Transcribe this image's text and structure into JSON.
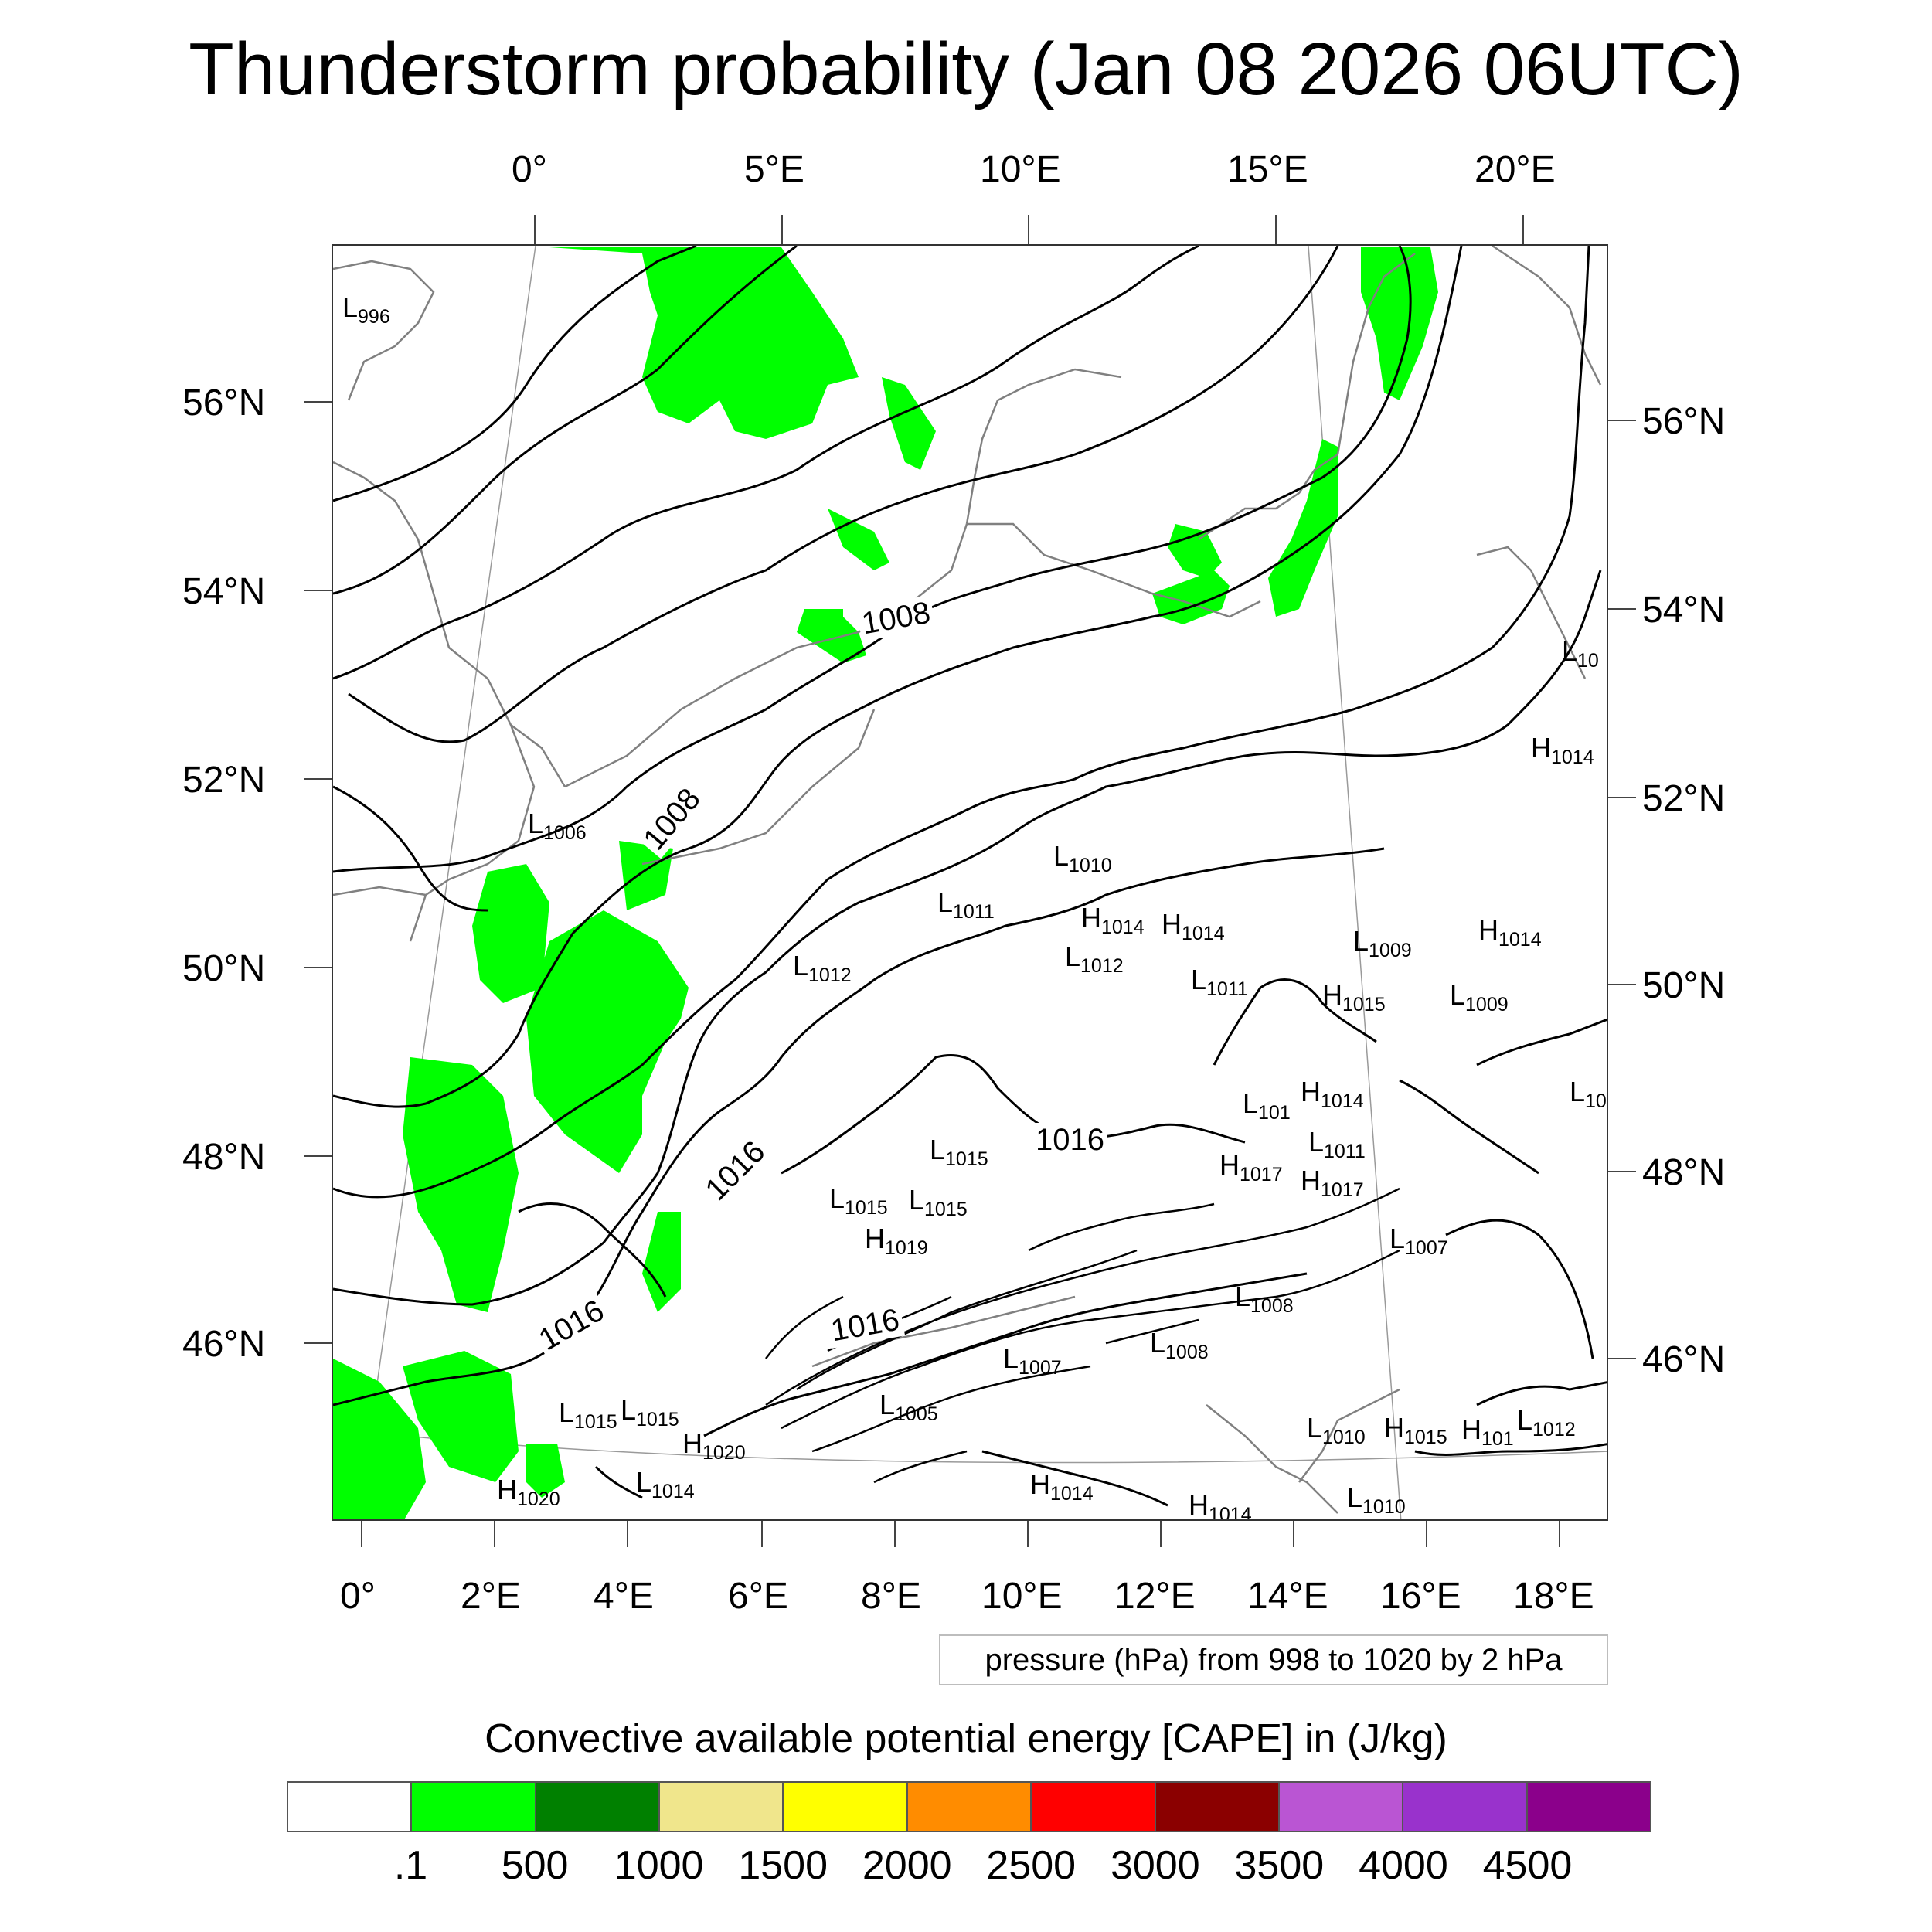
{
  "title": "Thunderstorm probability (Jan 08 2026 06UTC)",
  "top_lon_labels": [
    "0°",
    "5°E",
    "10°E",
    "15°E",
    "20°E"
  ],
  "bottom_lon_labels": [
    "0°",
    "2°E",
    "4°E",
    "6°E",
    "8°E",
    "10°E",
    "12°E",
    "14°E",
    "16°E",
    "18°E"
  ],
  "left_lat_labels": [
    "56°N",
    "54°N",
    "52°N",
    "50°N",
    "48°N",
    "46°N"
  ],
  "right_lat_labels": [
    "56°N",
    "54°N",
    "52°N",
    "50°N",
    "48°N",
    "46°N"
  ],
  "pressure_legend": "pressure (hPa) from 998 to 1020 by 2 hPa",
  "colorbar": {
    "title": "Convective available potential energy [CAPE] in (J/kg)",
    "colors": [
      "#ffffff",
      "#00ff00",
      "#008000",
      "#f0e68c",
      "#ffff00",
      "#ff8c00",
      "#ff0000",
      "#8b0000",
      "#ba55d3",
      "#9932cc",
      "#8b008b"
    ],
    "labels": [
      ".1",
      "500",
      "1000",
      "1500",
      "2000",
      "2500",
      "3000",
      "3500",
      "4000",
      "4500"
    ]
  },
  "contour_labels": [
    "1008",
    "1008",
    "1016",
    "1016",
    "1016",
    "1016"
  ],
  "pressure_centers": [
    {
      "type": "L",
      "value": "996"
    },
    {
      "type": "L",
      "value": "1006"
    },
    {
      "type": "L",
      "value": "1010"
    },
    {
      "type": "L",
      "value": "1011"
    },
    {
      "type": "H",
      "value": "1014"
    },
    {
      "type": "H",
      "value": "1014"
    },
    {
      "type": "L",
      "value": "1012"
    },
    {
      "type": "L",
      "value": "1012"
    },
    {
      "type": "L",
      "value": "1011"
    },
    {
      "type": "L",
      "value": "1009"
    },
    {
      "type": "H",
      "value": "1014"
    },
    {
      "type": "H",
      "value": "1015"
    },
    {
      "type": "L",
      "value": "1009"
    },
    {
      "type": "L",
      "value": "101"
    },
    {
      "type": "H",
      "value": "1014"
    },
    {
      "type": "L",
      "value": "1011"
    },
    {
      "type": "H",
      "value": "1017"
    },
    {
      "type": "H",
      "value": "1017"
    },
    {
      "type": "L",
      "value": "1015"
    },
    {
      "type": "L",
      "value": "1015"
    },
    {
      "type": "L",
      "value": "1015"
    },
    {
      "type": "H",
      "value": "1019"
    },
    {
      "type": "L",
      "value": "1007"
    },
    {
      "type": "L",
      "value": "1008"
    },
    {
      "type": "L",
      "value": "1008"
    },
    {
      "type": "L",
      "value": "1007"
    },
    {
      "type": "L",
      "value": "1005"
    },
    {
      "type": "L",
      "value": "1015"
    },
    {
      "type": "L",
      "value": "1015"
    },
    {
      "type": "H",
      "value": "1020"
    },
    {
      "type": "H",
      "value": "1020"
    },
    {
      "type": "L",
      "value": "1014"
    },
    {
      "type": "H",
      "value": "1014"
    },
    {
      "type": "H",
      "value": "1014"
    },
    {
      "type": "L",
      "value": "1010"
    },
    {
      "type": "H",
      "value": "1015"
    },
    {
      "type": "H",
      "value": "101"
    },
    {
      "type": "L",
      "value": "1012"
    },
    {
      "type": "L",
      "value": "1010"
    },
    {
      "type": "L",
      "value": "10"
    },
    {
      "type": "H",
      "value": "1014"
    },
    {
      "type": "L",
      "value": "10"
    }
  ]
}
